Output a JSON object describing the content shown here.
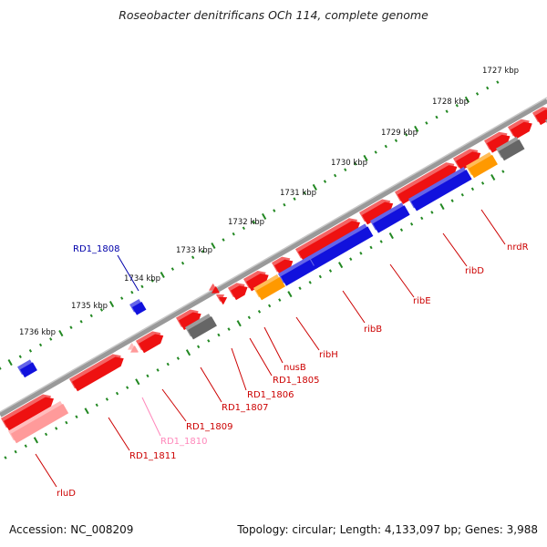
{
  "title": "Roseobacter denitrificans OCh 114, complete genome",
  "footer": {
    "accession": "Accession: NC_008209",
    "summary": "Topology: circular; Length: 4,133,097 bp; Genes: 3,988"
  },
  "colors": {
    "forward_gene": "#ee1111",
    "reverse_gene": "#1111dd",
    "rna_gene": "#ff9900",
    "other_gene": "#666666",
    "pseudo_gene": "#ff9a9a",
    "ticks": "#228822",
    "backbone": "#888888"
  },
  "scale": {
    "labels": [
      "1727 kbp",
      "1728 kbp",
      "1729 kbp",
      "1730 kbp",
      "1731 kbp",
      "1732 kbp",
      "1733 kbp",
      "1734 kbp",
      "1735 kbp",
      "1736 kbp"
    ]
  },
  "gene_labels": [
    {
      "name": "nrdR",
      "color": "#cc0000"
    },
    {
      "name": "ribD",
      "color": "#cc0000"
    },
    {
      "name": "ribE",
      "color": "#cc0000"
    },
    {
      "name": "ribB",
      "color": "#cc0000"
    },
    {
      "name": "ribH",
      "color": "#cc0000"
    },
    {
      "name": "nusB",
      "color": "#cc0000"
    },
    {
      "name": "RD1_1805",
      "color": "#cc0000"
    },
    {
      "name": "RD1_1806",
      "color": "#cc0000"
    },
    {
      "name": "RD1_1807",
      "color": "#cc0000"
    },
    {
      "name": "RD1_1809",
      "color": "#cc0000"
    },
    {
      "name": "RD1_1810",
      "color": "#ff88bb"
    },
    {
      "name": "RD1_1811",
      "color": "#cc0000"
    },
    {
      "name": "rluD",
      "color": "#cc0000"
    },
    {
      "name": "RD1_1808",
      "color": "#0000aa"
    }
  ]
}
